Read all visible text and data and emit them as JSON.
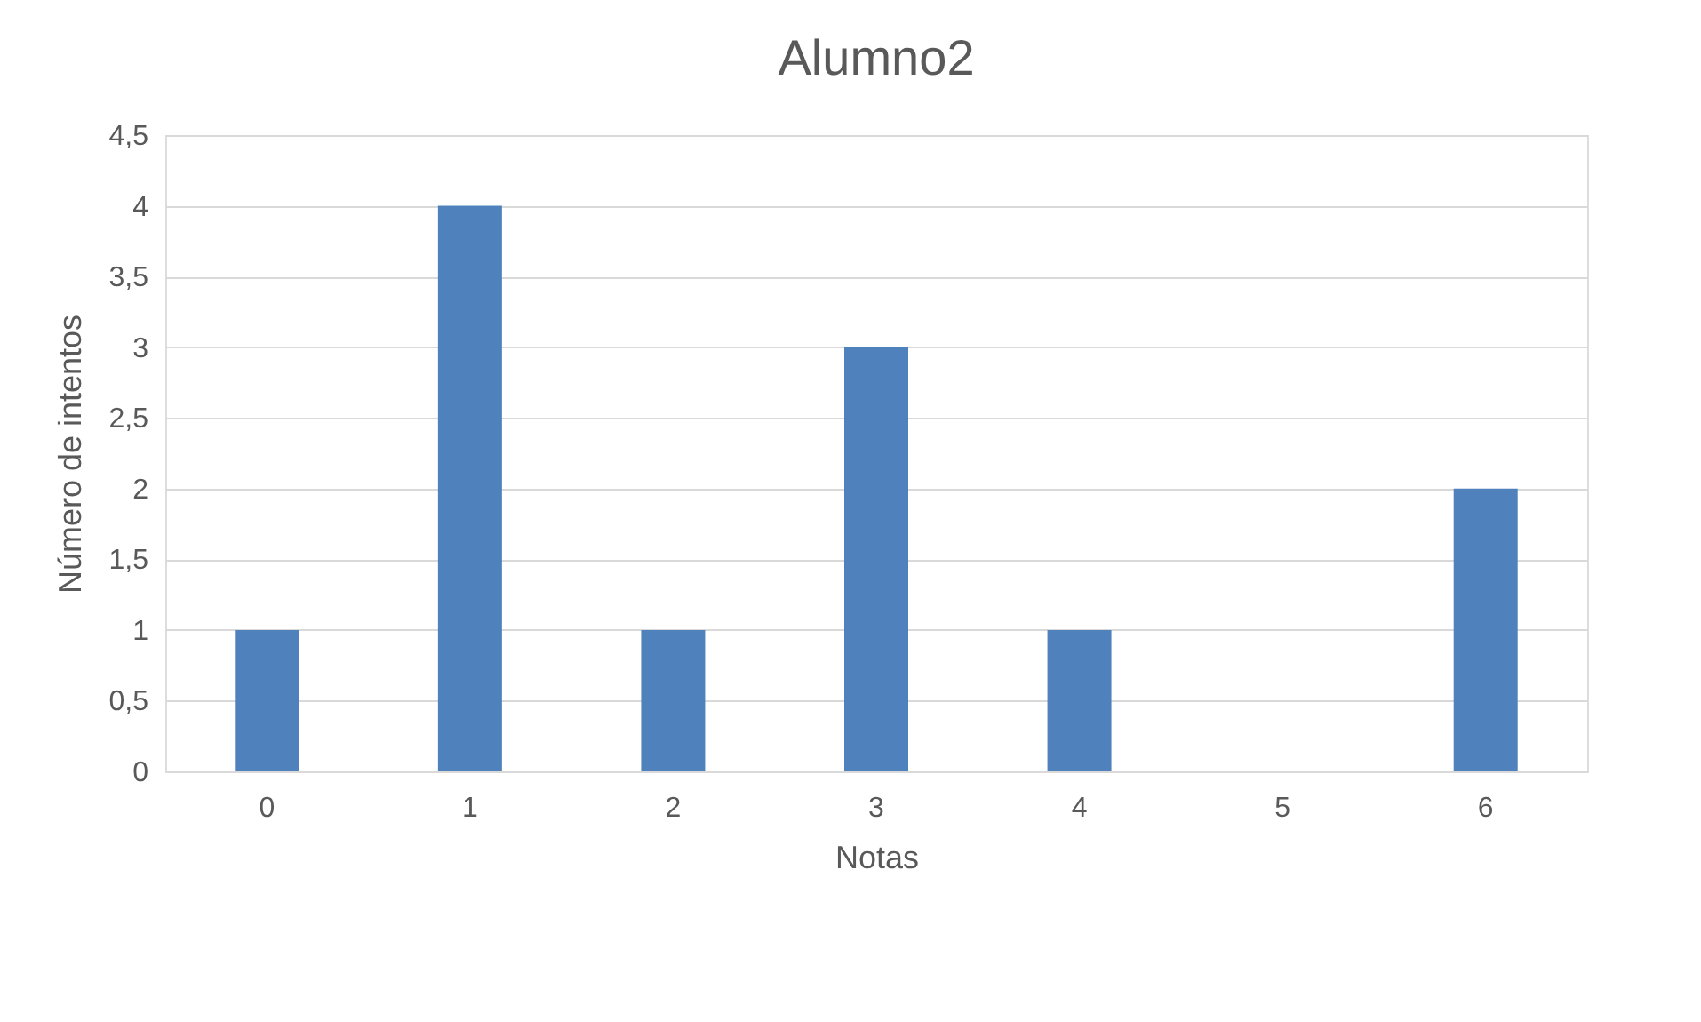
{
  "chart_data": {
    "type": "bar",
    "title": "Alumno2",
    "xlabel": "Notas",
    "ylabel": "Número de intentos",
    "categories": [
      "0",
      "1",
      "2",
      "3",
      "4",
      "5",
      "6"
    ],
    "values": [
      1,
      4,
      1,
      3,
      1,
      0,
      2
    ],
    "color": "#4f81bd",
    "ylim": [
      0,
      4.5
    ],
    "yticks": [
      0,
      {
        "value": 0.5,
        "label": "0,5"
      },
      1,
      {
        "value": 1.5,
        "label": "1,5"
      },
      2,
      {
        "value": 2.5,
        "label": "2,5"
      },
      3,
      {
        "value": 3.5,
        "label": "3,5"
      },
      4,
      {
        "value": 4.5,
        "label": "4,5"
      }
    ],
    "grid": "y"
  }
}
